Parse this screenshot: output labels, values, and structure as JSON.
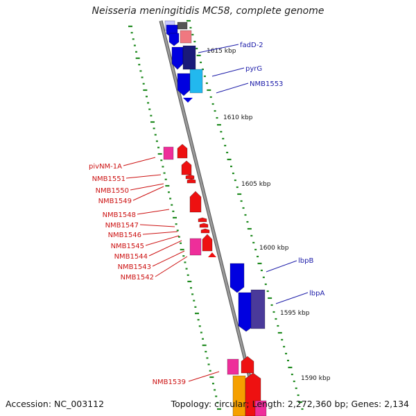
{
  "title": "Neisseria meningitidis MC58, complete genome",
  "accession_text": "Accession: NC_003112",
  "topology_text": "Topology: circular; Length: 2,272,360 bp; Genes: 2,134",
  "colors": {
    "backbone": "#808080",
    "scale_tick": "#1f8a1f",
    "forward_gene_label": "#1a1aa8",
    "reverse_gene_label": "#cc1111",
    "forward_gene": "#0000e0",
    "reverse_gene": "#ee1111",
    "pink_gene": "#ee2e9a",
    "orange_gene": "#f5a000",
    "light_blue_gene": "#22b8ee",
    "dark_blue_gene": "#4a3a9a",
    "grey_gene": "#555555",
    "salmon_gene": "#f07880"
  },
  "scale_labels": [
    "1615 kbp",
    "1610 kbp",
    "1605 kbp",
    "1600 kbp",
    "1595 kbp",
    "1590 kbp"
  ],
  "forward_labels": [
    "fadD-2",
    "pyrG",
    "NMB1553",
    "lbpB",
    "lbpA"
  ],
  "reverse_labels": [
    "pivNM-1A",
    "NMB1551",
    "NMB1550",
    "NMB1549",
    "NMB1548",
    "NMB1547",
    "NMB1546",
    "NMB1545",
    "NMB1544",
    "NMB1543",
    "NMB1542",
    "NMB1539"
  ]
}
